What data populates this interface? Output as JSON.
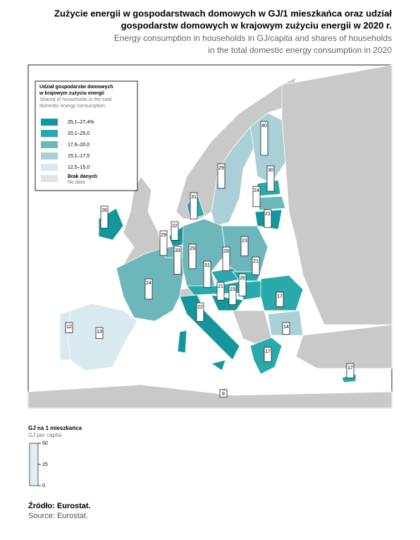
{
  "title_pl": [
    "Zużycie energii w gospodarstwach domowych w GJ/1 mieszkańca oraz udział",
    "gospodarstw domowych w krajowym zużyciu energii w 2020 r."
  ],
  "title_en": [
    "Energy consumption in households in GJ/capita and shares of households",
    "in the total domestic energy consumption in 2020"
  ],
  "map": {
    "legend": {
      "title_pl": [
        "Udział gospodarstw domowych",
        "w krajowym zużyciu energii"
      ],
      "title_en": [
        "Shared of households in the total",
        "domestic energy consumption"
      ],
      "classes": [
        {
          "label": "25,1–27,4%",
          "color": "#14979b"
        },
        {
          "label": "20,1–25,0",
          "color": "#2aa9ad"
        },
        {
          "label": "17,6–20,0",
          "color": "#6db7bb"
        },
        {
          "label": "15,1–17,5",
          "color": "#a9d0d7"
        },
        {
          "label": "12,5–15,0",
          "color": "#d8e9ef"
        },
        {
          "label": "Brak danych",
          "label_en": "No data",
          "color": "#e2e2e2"
        }
      ]
    },
    "bars": [
      40,
      29,
      30,
      24,
      21,
      26,
      31,
      22,
      29,
      33,
      29,
      28,
      23,
      31,
      21,
      24,
      21,
      26,
      23,
      22,
      17,
      12,
      13,
      14,
      17,
      17,
      9
    ],
    "scale": {
      "title_pl": "GJ na 1 mieszkańca",
      "title_en": "GJ per capita",
      "lim": [
        0,
        50
      ],
      "ticks": [
        0,
        25,
        50
      ]
    }
  },
  "source_pl": "Źródło: Eurostat.",
  "source_en": "Source: Eurostat."
}
